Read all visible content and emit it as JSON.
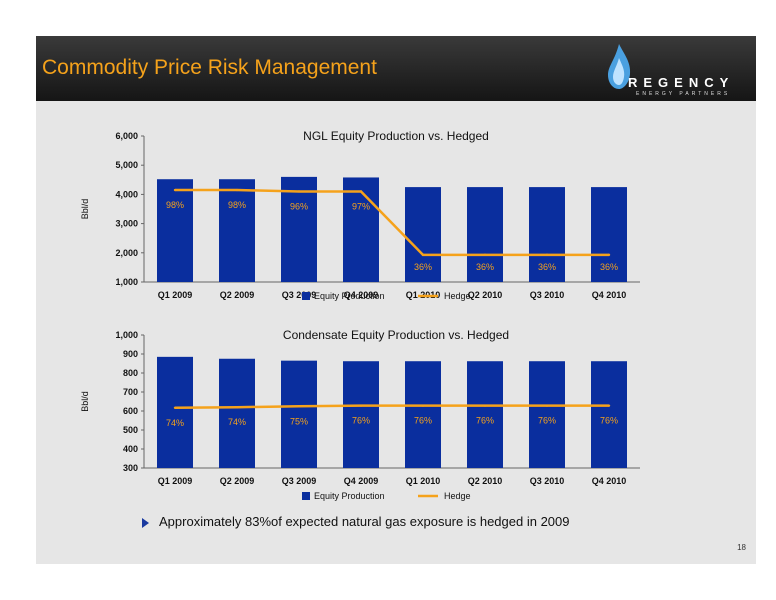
{
  "header": {
    "title": "Commodity Price Risk Management"
  },
  "logo": {
    "word": "REGENCY",
    "sub": "ENERGY PARTNERS"
  },
  "bullet": {
    "text": "Approximately 83%of expected natural gas exposure is hedged in 2009"
  },
  "page_number": "18",
  "colors": {
    "bar": "#0a2e9e",
    "hedge_line": "#f5a21b",
    "title": "#f5a21b"
  },
  "chart_data": [
    {
      "type": "bar",
      "title": "NGL Equity Production vs. Hedged",
      "ylabel": "Bbl/d",
      "categories": [
        "Q1 2009",
        "Q2 2009",
        "Q3 2009",
        "Q4 2009",
        "Q1 2010",
        "Q2 2010",
        "Q3 2010",
        "Q4 2010"
      ],
      "ylim": [
        1000,
        6000
      ],
      "yticks": [
        "1,000",
        "2,000",
        "3,000",
        "4,000",
        "5,000",
        "6,000"
      ],
      "series": [
        {
          "name": "Equity Production",
          "type": "bar",
          "values": [
            4520,
            4520,
            4600,
            4580,
            4250,
            4250,
            4250,
            4250
          ]
        },
        {
          "name": "Hedge",
          "type": "line",
          "values": [
            4150,
            4150,
            4100,
            4100,
            1930,
            1930,
            1930,
            1930
          ]
        }
      ],
      "data_labels": [
        "98%",
        "98%",
        "96%",
        "97%",
        "36%",
        "36%",
        "36%",
        "36%"
      ],
      "legend": "bottom"
    },
    {
      "type": "bar",
      "title": "Condensate Equity Production vs. Hedged",
      "ylabel": "Bbl/d",
      "categories": [
        "Q1 2009",
        "Q2 2009",
        "Q3 2009",
        "Q4 2009",
        "Q1 2010",
        "Q2 2010",
        "Q3 2010",
        "Q4 2010"
      ],
      "ylim": [
        300,
        1000
      ],
      "yticks": [
        "300",
        "400",
        "500",
        "600",
        "700",
        "800",
        "900",
        "1,000"
      ],
      "series": [
        {
          "name": "Equity Production",
          "type": "bar",
          "values": [
            885,
            875,
            865,
            862,
            862,
            862,
            862,
            862
          ]
        },
        {
          "name": "Hedge",
          "type": "line",
          "values": [
            617,
            620,
            625,
            628,
            628,
            628,
            628,
            628
          ]
        }
      ],
      "data_labels": [
        "74%",
        "74%",
        "75%",
        "76%",
        "76%",
        "76%",
        "76%",
        "76%"
      ],
      "legend": "bottom"
    }
  ]
}
